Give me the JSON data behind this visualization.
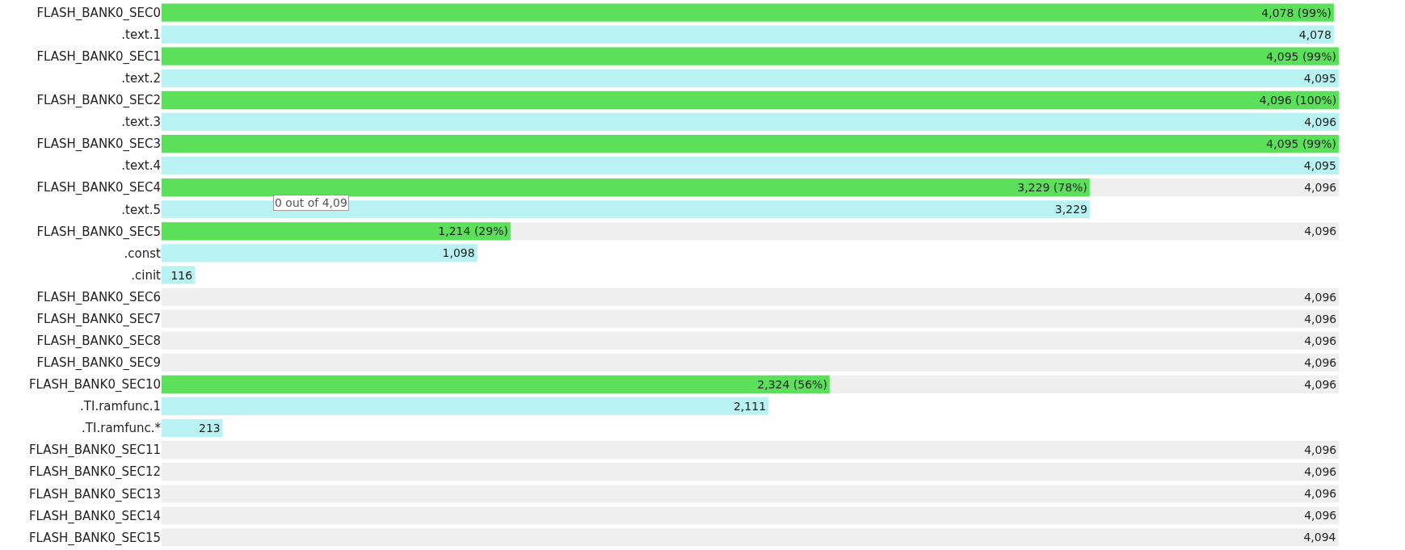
{
  "chart_data": {
    "type": "bar",
    "orientation": "horizontal",
    "tick_labels": "y",
    "categories": [
      "FLASH_BANK0_SEC0",
      ".text.1",
      "FLASH_BANK0_SEC1",
      ".text.2",
      "FLASH_BANK0_SEC2",
      ".text.3",
      "FLASH_BANK0_SEC3",
      ".text.4",
      "FLASH_BANK0_SEC4",
      ".text.5",
      "FLASH_BANK0_SEC5",
      ".const",
      ".cinit",
      "FLASH_BANK0_SEC6",
      "FLASH_BANK0_SEC7",
      "FLASH_BANK0_SEC8",
      "FLASH_BANK0_SEC9",
      "FLASH_BANK0_SEC10",
      ".TI.ramfunc.1",
      ".TI.ramfunc.*",
      "FLASH_BANK0_SEC11",
      "FLASH_BANK0_SEC12",
      "FLASH_BANK0_SEC13",
      "FLASH_BANK0_SEC14",
      "FLASH_BANK0_SEC15"
    ],
    "series": [
      {
        "values": [
          4078,
          4078,
          4095,
          4095,
          4096,
          4096,
          4095,
          4095,
          3229,
          3229,
          1214,
          1098,
          116,
          0,
          0,
          0,
          0,
          2324,
          2111,
          213,
          0,
          0,
          0,
          0,
          0
        ],
        "colors": [
          "#5ce05c",
          "#b8f2f2",
          "#5ce05c",
          "#b8f2f2",
          "#5ce05c",
          "#b8f2f2",
          "#5ce05c",
          "#b8f2f2",
          "#5ce05c",
          "#b8f2f2",
          "#5ce05c",
          "#b8f2f2",
          "#b8f2f2",
          "#5ce05c",
          "#5ce05c",
          "#5ce05c",
          "#5ce05c",
          "#5ce05c",
          "#b8f2f2",
          "#b8f2f2",
          "#5ce05c",
          "#5ce05c",
          "#5ce05c",
          "#5ce05c",
          "#5ce05c"
        ],
        "value_labels": [
          "4,078 (99%)",
          "4,078",
          "4,095 (99%)",
          "4,095",
          "4,096 (100%)",
          "4,096",
          "4,095 (99%)",
          "4,095",
          "3,229 (78%)",
          "3,229",
          "1,214 (29%)",
          "1,098",
          "116",
          null,
          null,
          null,
          null,
          "2,324 (56%)",
          "2,111",
          "213",
          null,
          null,
          null,
          null,
          null
        ]
      },
      {
        "color": "#efefef",
        "values": [
          null,
          null,
          null,
          null,
          null,
          null,
          null,
          null,
          4096,
          null,
          4096,
          null,
          null,
          4096,
          4096,
          4096,
          4096,
          4096,
          null,
          null,
          4096,
          4096,
          4096,
          4096,
          4094
        ],
        "value_labels": [
          null,
          null,
          null,
          null,
          null,
          null,
          null,
          null,
          "4,096",
          null,
          "4,096",
          null,
          null,
          "4,096",
          "4,096",
          "4,096",
          "4,096",
          "4,096",
          null,
          null,
          "4,096",
          "4,096",
          "4,096",
          "4,096",
          "4,094"
        ]
      }
    ],
    "annotations": [
      "0 out of 4,09"
    ]
  }
}
